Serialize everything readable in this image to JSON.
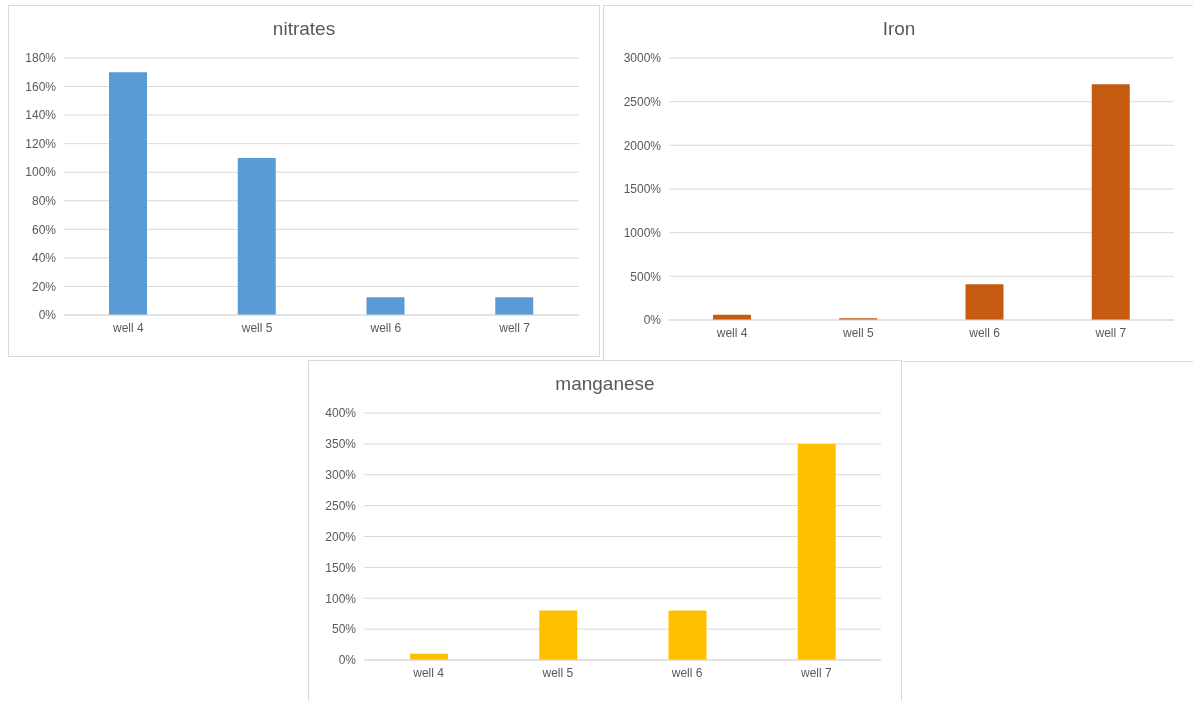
{
  "chart_data": [
    {
      "type": "bar",
      "title": "nitrates",
      "categories": [
        "well 4",
        "well 5",
        "well 6",
        "well 7"
      ],
      "values": [
        170,
        110,
        12.5,
        12.5
      ],
      "color": "#5b9bd5",
      "ylim": [
        0,
        180
      ],
      "yticks": [
        {
          "value": 0,
          "label": "0%"
        },
        {
          "value": 20,
          "label": "20%"
        },
        {
          "value": 40,
          "label": "40%"
        },
        {
          "value": 60,
          "label": "60%"
        },
        {
          "value": 80,
          "label": "80%"
        },
        {
          "value": 100,
          "label": "100%"
        },
        {
          "value": 120,
          "label": "120%"
        },
        {
          "value": 140,
          "label": "140%"
        },
        {
          "value": 160,
          "label": "160%"
        },
        {
          "value": 180,
          "label": "180%"
        }
      ],
      "grid": "y"
    },
    {
      "type": "bar",
      "title": "Iron",
      "categories": [
        "well 4",
        "well 5",
        "well 6",
        "well 7"
      ],
      "values": [
        60,
        20,
        410,
        2700
      ],
      "color": "#c55a11",
      "ylim": [
        0,
        3000
      ],
      "yticks": [
        {
          "value": 0,
          "label": "0%"
        },
        {
          "value": 500,
          "label": "500%"
        },
        {
          "value": 1000,
          "label": "1000%"
        },
        {
          "value": 1500,
          "label": "1500%"
        },
        {
          "value": 2000,
          "label": "2000%"
        },
        {
          "value": 2500,
          "label": "2500%"
        },
        {
          "value": 3000,
          "label": "3000%"
        }
      ],
      "grid": "y"
    },
    {
      "type": "bar",
      "title": "manganese",
      "categories": [
        "well 4",
        "well 5",
        "well 6",
        "well 7"
      ],
      "values": [
        10,
        80,
        80,
        350
      ],
      "color": "#ffc000",
      "ylim": [
        0,
        400
      ],
      "yticks": [
        {
          "value": 0,
          "label": "0%"
        },
        {
          "value": 50,
          "label": "50%"
        },
        {
          "value": 100,
          "label": "100%"
        },
        {
          "value": 150,
          "label": "150%"
        },
        {
          "value": 200,
          "label": "200%"
        },
        {
          "value": 250,
          "label": "250%"
        },
        {
          "value": 300,
          "label": "300%"
        },
        {
          "value": 350,
          "label": "350%"
        },
        {
          "value": 400,
          "label": "400%"
        }
      ],
      "grid": "y"
    }
  ]
}
